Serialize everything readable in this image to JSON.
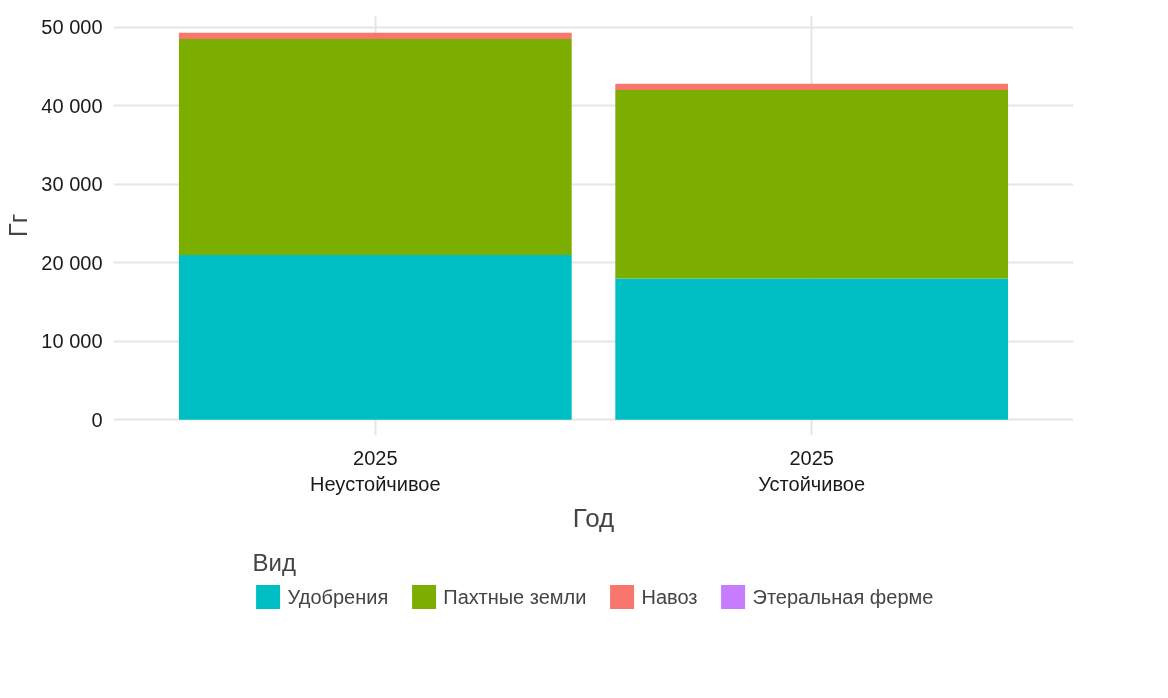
{
  "chart_data": {
    "type": "bar",
    "stacked": true,
    "xlabel": "Год",
    "ylabel": "Гг",
    "legend_title": "Вид",
    "legend": "bottom",
    "grid": true,
    "categories": [
      "2025\nНеустойчивое",
      "2025\nУстойчивое"
    ],
    "series": [
      {
        "name": "Удобрения",
        "color": "#00bfc4",
        "values": [
          21000,
          18000
        ]
      },
      {
        "name": "Пахтные земли",
        "color": "#7cae00",
        "values": [
          27500,
          24000
        ]
      },
      {
        "name": "Навоз",
        "color": "#f8766d",
        "values": [
          800,
          800
        ]
      },
      {
        "name": "Этеральная ферме",
        "color": "#c77cff",
        "values": [
          0,
          0
        ]
      }
    ],
    "ylim": [
      -2000,
      51500
    ],
    "yticks": [
      {
        "value": 0,
        "label": "0"
      },
      {
        "value": 10000,
        "label": "10 000"
      },
      {
        "value": 20000,
        "label": "20 000"
      },
      {
        "value": 30000,
        "label": "30 000"
      },
      {
        "value": 40000,
        "label": "40 000"
      },
      {
        "value": 50000,
        "label": "50 000"
      }
    ]
  }
}
